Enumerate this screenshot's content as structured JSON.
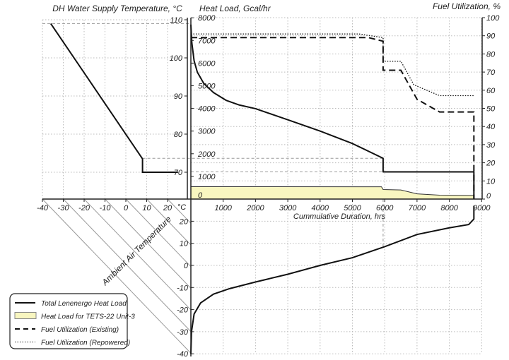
{
  "chart_data": [
    {
      "type": "line",
      "title": "DH Water Supply Temperature, °C",
      "xlabel": "Ambient Air Temperature",
      "x_unit_label": "°C",
      "xlim": [
        -40,
        25
      ],
      "ylim": [
        70,
        110
      ],
      "x_ticks": [
        "-40",
        "-30",
        "-20",
        "-10",
        "0",
        "10",
        "20"
      ],
      "y_ticks": [
        "110",
        "100",
        "90",
        "80",
        "70"
      ],
      "series": [
        {
          "name": "DH Water Supply Temperature",
          "x": [
            -36,
            8,
            8,
            25
          ],
          "y": [
            109,
            73.5,
            70,
            70
          ]
        }
      ]
    },
    {
      "type": "line",
      "title": "Heat Load, Gcal/hr",
      "y2label": "Fuel Utilization, %",
      "xlabel": "Cummulative Duration, hrs",
      "xlim": [
        0,
        9000
      ],
      "ylim": [
        0,
        8000
      ],
      "y2lim": [
        0,
        100
      ],
      "x_ticks": [
        "1000",
        "2000",
        "3000",
        "4000",
        "5000",
        "6000",
        "7000",
        "8000",
        "9000"
      ],
      "y_ticks": [
        "0",
        "1000",
        "2000",
        "3000",
        "4000",
        "5000",
        "6000",
        "7000",
        "8000"
      ],
      "y2_ticks": [
        "0",
        "10",
        "20",
        "30",
        "40",
        "50",
        "60",
        "70",
        "80",
        "90",
        "100"
      ],
      "series": [
        {
          "name": "Total Lenenergo Heat Load",
          "axis": "left",
          "x": [
            0,
            30,
            100,
            200,
            400,
            700,
            1100,
            1500,
            2000,
            3000,
            4000,
            5000,
            5950,
            5950,
            8760,
            8760
          ],
          "y": [
            7700,
            6900,
            6100,
            5600,
            5100,
            4700,
            4350,
            4150,
            3990,
            3500,
            3000,
            2450,
            1800,
            1200,
            1200,
            0
          ]
        },
        {
          "name": "Heat Load for TETS-22  Unit-3",
          "axis": "left",
          "x": [
            0,
            5900,
            5950,
            6500,
            7000,
            7700,
            8760
          ],
          "y": [
            550,
            540,
            420,
            400,
            230,
            170,
            160
          ]
        },
        {
          "name": "Fuel Utilization (Existing)",
          "axis": "right",
          "x": [
            0,
            5500,
            5950,
            5950,
            6500,
            7000,
            7700,
            8760,
            8760
          ],
          "y": [
            89,
            89,
            87,
            71,
            71,
            55,
            48,
            48,
            0
          ]
        },
        {
          "name": "Fuel Utilization (Repowered)",
          "axis": "right",
          "x": [
            0,
            5200,
            5950,
            5950,
            6500,
            6900,
            7700,
            8760
          ],
          "y": [
            91,
            91,
            89,
            76,
            76,
            63,
            57,
            57
          ]
        }
      ]
    },
    {
      "type": "line",
      "title": "",
      "ylabel": "Ambient Air Temperature",
      "xlim": [
        0,
        9000
      ],
      "ylim": [
        -40,
        20
      ],
      "y_ticks": [
        "20",
        "10",
        "0",
        "-10",
        "-20",
        "-30",
        "-40"
      ],
      "series": [
        {
          "name": "Ambient Air Temperature duration",
          "x": [
            0,
            20,
            100,
            300,
            700,
            1200,
            2000,
            3000,
            4000,
            5000,
            6000,
            7000,
            8000,
            8600,
            8760,
            8760
          ],
          "y": [
            -40,
            -30,
            -22,
            -17,
            -13,
            -10.5,
            -7.5,
            -4,
            0,
            3.5,
            8.5,
            14,
            17,
            18.5,
            21,
            27
          ]
        }
      ]
    }
  ],
  "legend": {
    "placement": "bottom-left",
    "items": [
      {
        "label": "Total Lenenergo Heat Load",
        "style": "solid"
      },
      {
        "label": "Heat Load for TETS-22  Unit-3",
        "style": "fill",
        "color": "#f8f6c0"
      },
      {
        "label": "Fuel Utilization (Existing)",
        "style": "dashed"
      },
      {
        "label": "Fuel Utilization (Repowered)",
        "style": "dotted"
      }
    ]
  },
  "colors": {
    "line": "#111111",
    "fill": "#f8f6c0",
    "grid": "#bbbbbb"
  }
}
